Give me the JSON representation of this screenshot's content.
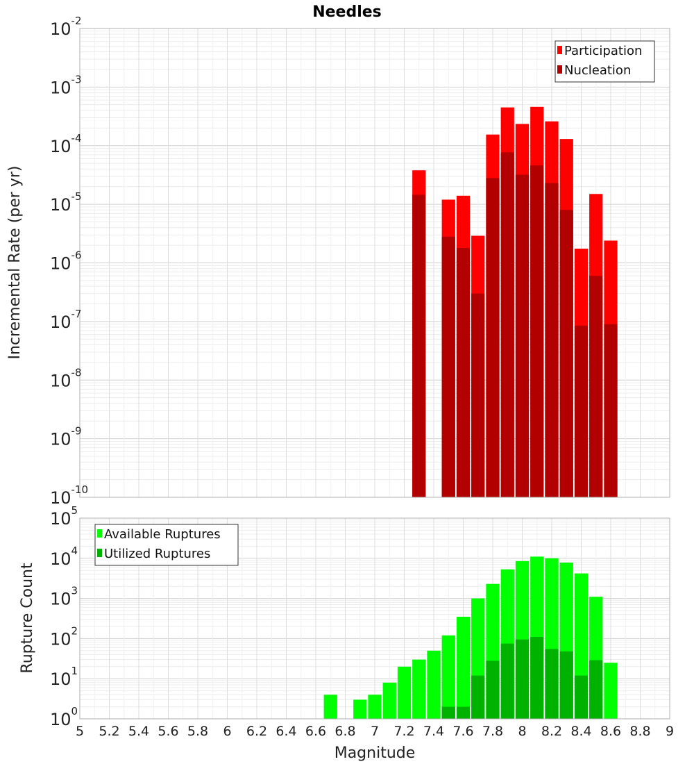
{
  "chart_data": [
    {
      "type": "bar",
      "title": "Needles",
      "ylabel": "Incremental Rate (per yr)",
      "xlabel": "",
      "xlim": [
        5,
        9
      ],
      "ylim": [
        1e-10,
        0.01
      ],
      "yscale": "log",
      "grid": true,
      "legend_position": "top-right",
      "bin_width": 0.1,
      "x": [
        7.3,
        7.5,
        7.6,
        7.7,
        7.8,
        7.9,
        8.0,
        8.1,
        8.2,
        8.3,
        8.4,
        8.5,
        8.6
      ],
      "series": [
        {
          "name": "Participation",
          "color": "#ff0000",
          "values": [
            3.8e-05,
            1.2e-05,
            1.4e-05,
            2.9e-06,
            0.000155,
            0.00045,
            0.000235,
            0.00046,
            0.00026,
            0.00013,
            1.75e-06,
            1.5e-05,
            2.4e-06
          ]
        },
        {
          "name": "Nucleation",
          "color": "#b20000",
          "values": [
            1.45e-05,
            2.8e-06,
            1.8e-06,
            3e-07,
            2.8e-05,
            7.7e-05,
            3.2e-05,
            4.6e-05,
            2.3e-05,
            8e-06,
            8.5e-08,
            6e-07,
            9e-08
          ]
        }
      ]
    },
    {
      "type": "bar",
      "title": "",
      "ylabel": "Rupture Count",
      "xlabel": "Magnitude",
      "xlim": [
        5,
        9
      ],
      "ylim": [
        1,
        100000.0
      ],
      "yscale": "log",
      "grid": true,
      "legend_position": "top-left",
      "bin_width": 0.1,
      "x_ticks": [
        "5",
        "5.2",
        "5.4",
        "5.6",
        "5.8",
        "6",
        "6.2",
        "6.4",
        "6.6",
        "6.8",
        "7",
        "7.2",
        "7.4",
        "7.6",
        "7.8",
        "8",
        "8.2",
        "8.4",
        "8.6",
        "8.8",
        "9"
      ],
      "x": [
        6.7,
        6.9,
        7.0,
        7.1,
        7.2,
        7.3,
        7.4,
        7.5,
        7.6,
        7.7,
        7.8,
        7.9,
        8.0,
        8.1,
        8.2,
        8.3,
        8.4,
        8.5,
        8.6
      ],
      "series": [
        {
          "name": "Available Ruptures",
          "color": "#00ff00",
          "values": [
            4,
            3,
            4,
            8,
            20,
            30,
            50,
            120,
            350,
            1000,
            2300,
            5300,
            8500,
            11000,
            10000,
            7800,
            4200,
            1100,
            25
          ]
        },
        {
          "name": "Utilized Ruptures",
          "color": "#00b200",
          "values": [
            0,
            0,
            0,
            1,
            0,
            1,
            0,
            2,
            2,
            12,
            28,
            75,
            95,
            110,
            55,
            48,
            12,
            29,
            1
          ]
        }
      ]
    }
  ]
}
